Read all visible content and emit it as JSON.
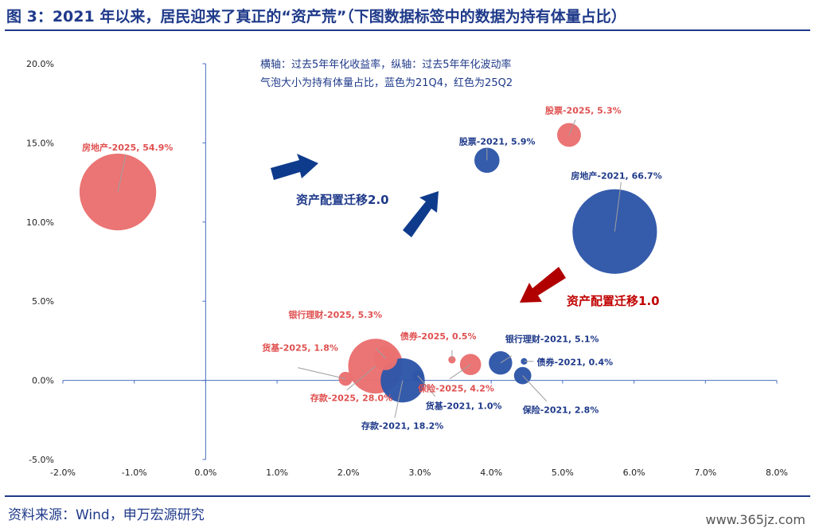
{
  "title": "图 3：2021 年以来，居民迎来了真正的“资产荒”（下图数据标签中的数据为持有体量占比）",
  "source": "资料来源：Wind，申万宏源研究",
  "watermark": "www.365jz.com",
  "notes": [
    "横轴：过去5年年化收益率，纵轴：过去5年年化波动率",
    "气泡大小为持有体量占比，蓝色为21Q4，红色为25Q2"
  ],
  "arrows": {
    "migration1": {
      "label": "资产配置迁移1.0",
      "color": "#c00000"
    },
    "migration2": {
      "label": "资产配置迁移2.0",
      "color": "#1f3a8a"
    }
  },
  "colors": {
    "blue": "#2e56a8",
    "red": "#ea6f6f",
    "blue_label": "#1f3a8a",
    "red_label": "#e05050"
  },
  "chart_data": {
    "type": "scatter",
    "bubble": true,
    "xlim": [
      -2,
      8
    ],
    "ylim": [
      -5,
      20
    ],
    "x_ticks": [
      "-2.0%",
      "-1.0%",
      "0.0%",
      "1.0%",
      "2.0%",
      "3.0%",
      "4.0%",
      "5.0%",
      "6.0%",
      "7.0%",
      "8.0%"
    ],
    "y_ticks": [
      "-5.0%",
      "0.0%",
      "5.0%",
      "10.0%",
      "15.0%",
      "20.0%"
    ],
    "grid": false,
    "series": [
      {
        "color": "#2e56a8",
        "points": [
          {
            "name": "房地产-2021",
            "share": 66.7,
            "x": 5.73,
            "y": 9.4,
            "label": "房地产-2021, 66.7%"
          },
          {
            "name": "股票-2021",
            "share": 5.9,
            "x": 3.94,
            "y": 13.9,
            "label": "股票-2021, 5.9%"
          },
          {
            "name": "银行理财-2021",
            "share": 5.1,
            "x": 4.13,
            "y": 1.1,
            "label": "银行理财-2021, 5.1%"
          },
          {
            "name": "债券-2021",
            "share": 0.4,
            "x": 4.46,
            "y": 1.2,
            "label": "债券-2021, 0.4%"
          },
          {
            "name": "保险-2021",
            "share": 2.8,
            "x": 4.44,
            "y": 0.3,
            "label": "保险-2021, 2.8%"
          },
          {
            "name": "货基-2021",
            "share": 1.0,
            "x": 2.97,
            "y": 0.3,
            "label": "货基-2021, 1.0%"
          },
          {
            "name": "存款-2021",
            "share": 18.2,
            "x": 2.76,
            "y": 0.0,
            "label": "存款-2021, 18.2%"
          }
        ]
      },
      {
        "color": "#ea6f6f",
        "points": [
          {
            "name": "房地产-2025",
            "share": 54.9,
            "x": -1.23,
            "y": 11.9,
            "label": "房地产-2025, 54.9%"
          },
          {
            "name": "股票-2025",
            "share": 5.3,
            "x": 5.09,
            "y": 15.5,
            "label": "股票-2025, 5.3%"
          },
          {
            "name": "银行理财-2025",
            "share": 5.3,
            "x": 2.52,
            "y": 1.4,
            "label": "银行理财-2025, 5.3%"
          },
          {
            "name": "债券-2025",
            "share": 0.5,
            "x": 3.45,
            "y": 1.3,
            "label": "债券-2025, 0.5%"
          },
          {
            "name": "保险-2025",
            "share": 4.2,
            "x": 3.71,
            "y": 1.0,
            "label": "保险-2025, 4.2%"
          },
          {
            "name": "货基-2025",
            "share": 1.8,
            "x": 1.96,
            "y": 0.1,
            "label": "货基-2025, 1.8%"
          },
          {
            "name": "存款-2025",
            "share": 28.0,
            "x": 2.38,
            "y": 0.9,
            "label": "存款-2025, 28.0%"
          }
        ]
      }
    ]
  }
}
